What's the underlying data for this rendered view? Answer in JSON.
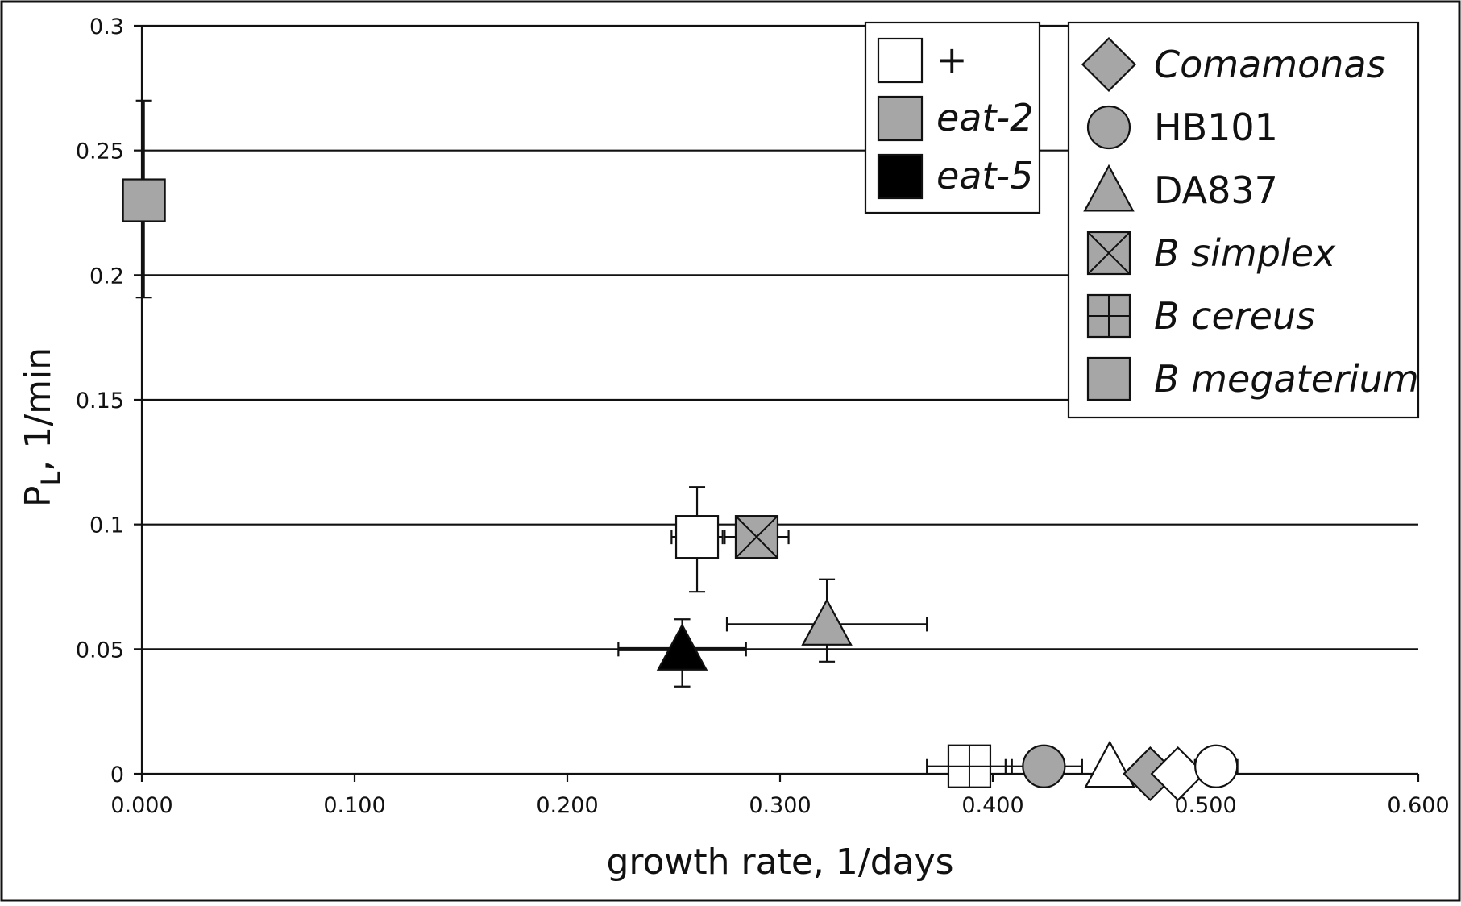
{
  "chart_data": {
    "type": "scatter",
    "xlabel": "growth rate, 1/days",
    "ylabel_main": "P",
    "ylabel_sub": "L",
    "ylabel_rest": ", 1/min",
    "xlim": [
      0,
      0.6
    ],
    "ylim": [
      0,
      0.3
    ],
    "x_ticks": [
      0,
      0.1,
      0.2,
      0.3,
      0.4,
      0.5,
      0.6
    ],
    "x_tick_labels": [
      "0.000",
      "0.100",
      "0.200",
      "0.300",
      "0.400",
      "0.500",
      "0.600"
    ],
    "y_ticks": [
      0,
      0.05,
      0.1,
      0.15,
      0.2,
      0.25,
      0.3
    ],
    "y_tick_labels": [
      "0",
      "0.05",
      "0.1",
      "0.15",
      "0.2",
      "0.25",
      "0.3"
    ],
    "grid": "horizontal",
    "legend_genotype": [
      {
        "label": "+",
        "fill": "#ffffff",
        "italic": false
      },
      {
        "label": "eat-2",
        "fill": "#a6a6a6",
        "italic": true
      },
      {
        "label": "eat-5",
        "fill": "#000000",
        "italic": true
      }
    ],
    "legend_food": [
      {
        "label": "Comamonas",
        "marker": "diamond",
        "italic": true
      },
      {
        "label": "HB101",
        "marker": "circle",
        "italic": false
      },
      {
        "label": "DA837",
        "marker": "triangle",
        "italic": false
      },
      {
        "label": "B simplex",
        "marker": "square-x",
        "italic": true
      },
      {
        "label": "B cereus",
        "marker": "square-plus",
        "italic": true
      },
      {
        "label": "B megaterium",
        "marker": "square",
        "italic": true
      }
    ],
    "points": [
      {
        "marker": "square",
        "fill": "#a6a6a6",
        "x": 0.001,
        "y": 0.23,
        "xerr": 0,
        "yerr_low": 0.039,
        "yerr_high": 0.04
      },
      {
        "marker": "square",
        "fill": "#ffffff",
        "x": 0.261,
        "y": 0.095,
        "xerr": 0.012,
        "yerr_low": 0.022,
        "yerr_high": 0.02
      },
      {
        "marker": "square-x",
        "fill": "#a6a6a6",
        "x": 0.289,
        "y": 0.095,
        "xerr": 0.015,
        "yerr_low": 0,
        "yerr_high": 0
      },
      {
        "marker": "triangle",
        "fill": "#a6a6a6",
        "x": 0.322,
        "y": 0.06,
        "xerr_low": 0.047,
        "xerr_high": 0.047,
        "yerr_low": 0.015,
        "yerr_high": 0.018
      },
      {
        "marker": "triangle",
        "fill": "#000000",
        "x": 0.254,
        "y": 0.05,
        "xerr_low": 0.03,
        "xerr_high": 0.03,
        "yerr_low": 0.015,
        "yerr_high": 0.012
      },
      {
        "marker": "square-plus",
        "fill": "#ffffff",
        "x": 0.389,
        "y": 0.003,
        "xerr": 0.02,
        "yerr_low": 0,
        "yerr_high": 0
      },
      {
        "marker": "circle",
        "fill": "#a6a6a6",
        "x": 0.424,
        "y": 0.003,
        "xerr": 0.018,
        "yerr_low": 0,
        "yerr_high": 0
      },
      {
        "marker": "triangle",
        "fill": "#ffffff",
        "x": 0.455,
        "y": 0.003,
        "xerr": 0,
        "yerr_low": 0,
        "yerr_high": 0
      },
      {
        "marker": "diamond",
        "fill": "#a6a6a6",
        "x": 0.474,
        "y": 0.0,
        "xerr": 0,
        "yerr_low": 0,
        "yerr_high": 0
      },
      {
        "marker": "diamond",
        "fill": "#ffffff",
        "x": 0.487,
        "y": 0.0,
        "xerr": 0,
        "yerr_low": 0,
        "yerr_high": 0
      },
      {
        "marker": "circle",
        "fill": "#ffffff",
        "x": 0.505,
        "y": 0.003,
        "xerr": 0.01,
        "yerr_low": 0,
        "yerr_high": 0
      }
    ]
  }
}
